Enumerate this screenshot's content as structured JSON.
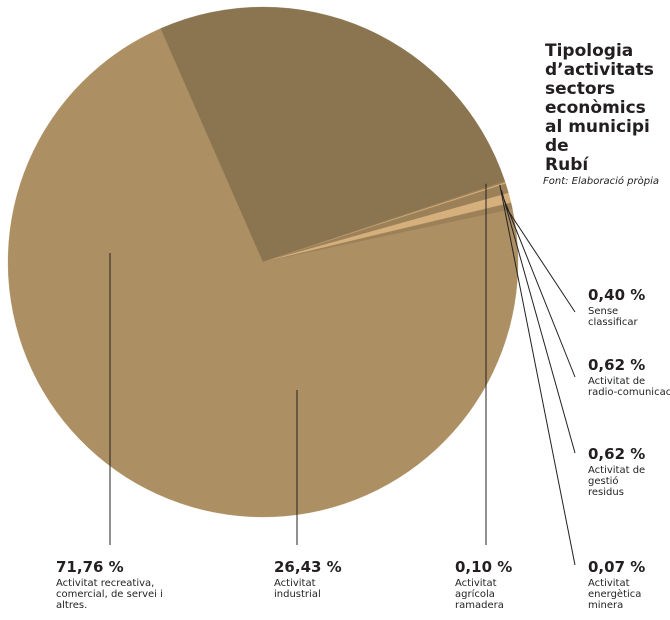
{
  "title": "Tipologia\nd’activitats sectors econòmics\nal municipi de\nRubí",
  "source": "Font: Elaboració pròpia",
  "colors": {
    "recreativa": "#ac9063",
    "industrial": "#8b7550",
    "minor_light": "#d6b07c",
    "minor_dark": "#9c8158",
    "line": "#231f20"
  },
  "chart_data": {
    "type": "pie",
    "slices": [
      {
        "label": "Activitat recreativa, comercial, de servei i altres.",
        "value": 71.76,
        "value_label": "71,76 %"
      },
      {
        "label": "Activitat industrial",
        "value": 26.43,
        "value_label": "26,43 %"
      },
      {
        "label": "Activitat agrícola ramadera",
        "value": 0.1,
        "value_label": "0,10 %"
      },
      {
        "label": "Activitat energètica minera",
        "value": 0.07,
        "value_label": "0,07 %"
      },
      {
        "label": "Activitat de gestió residus",
        "value": 0.62,
        "value_label": "0,62 %"
      },
      {
        "label": "Activitat de radio-comunicació",
        "value": 0.62,
        "value_label": "0,62 %"
      },
      {
        "label": "Sense classificar",
        "value": 0.4,
        "value_label": "0,40 %"
      }
    ]
  }
}
